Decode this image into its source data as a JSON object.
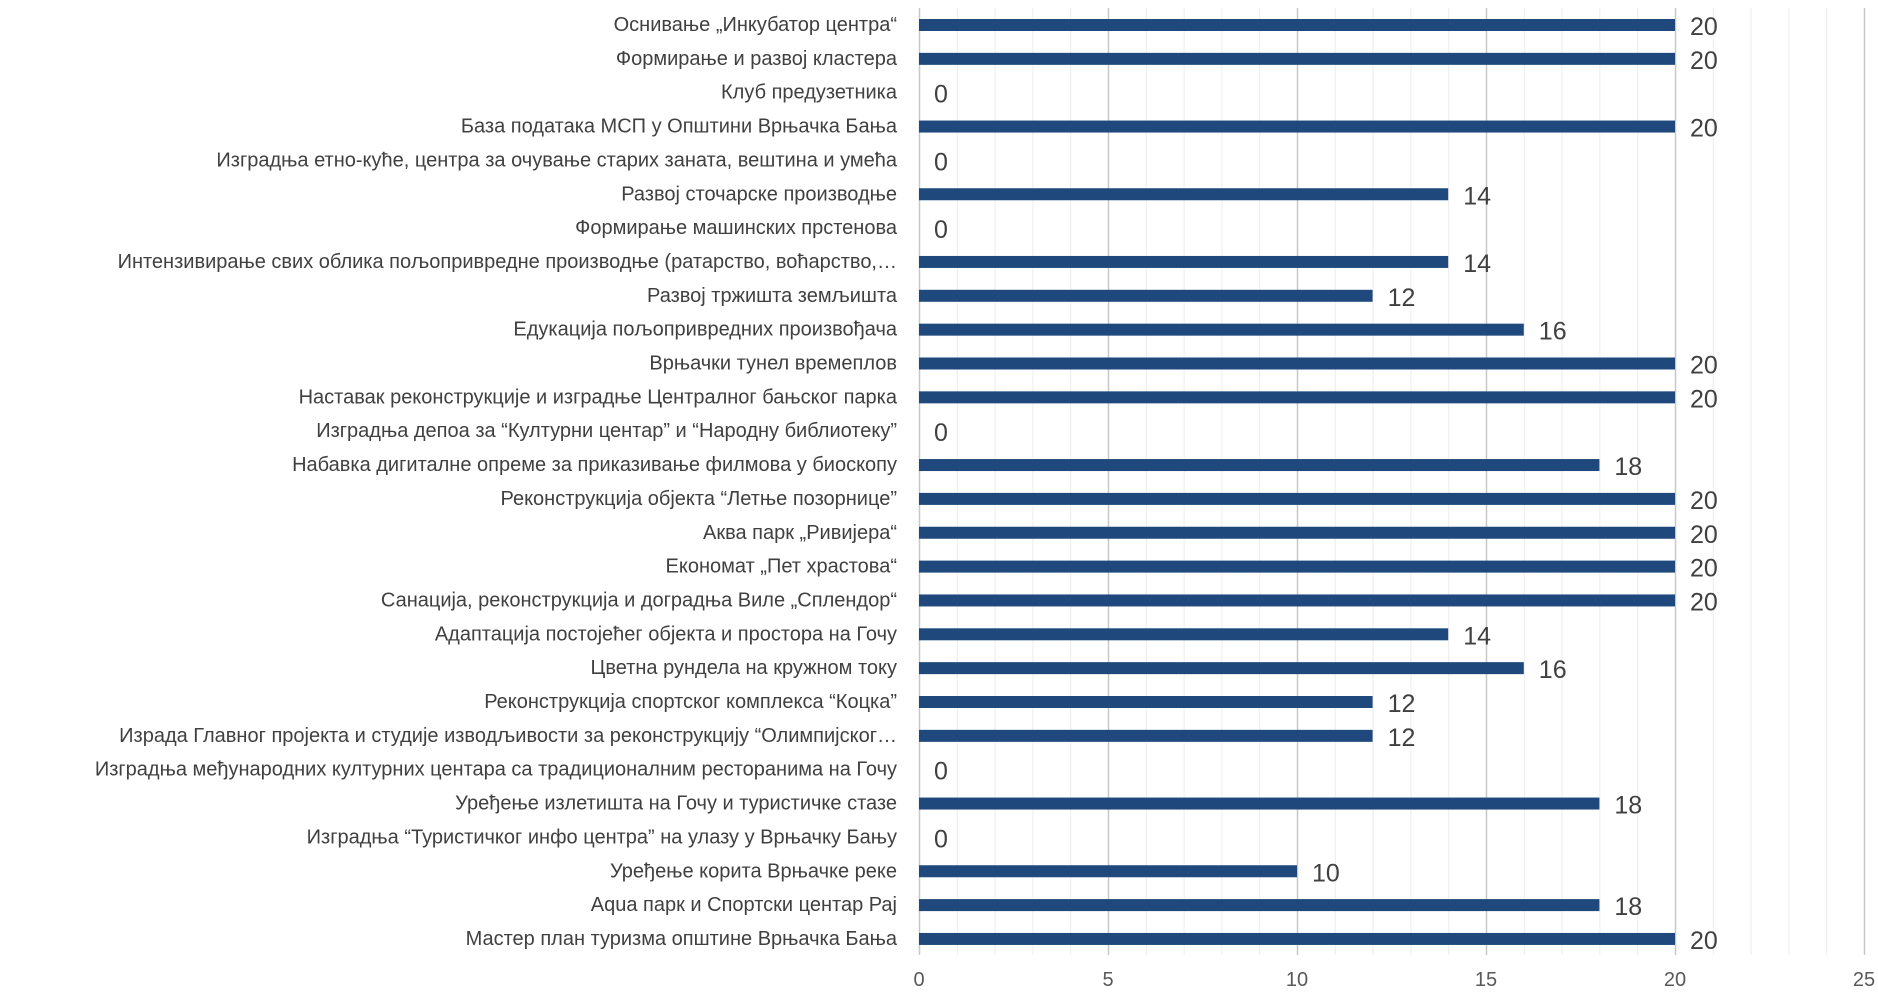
{
  "chart_data": {
    "type": "bar",
    "orientation": "horizontal",
    "title": "",
    "xlabel": "",
    "ylabel": "",
    "xlim": [
      0,
      25
    ],
    "x_ticks": [
      0,
      5,
      10,
      15,
      20,
      25
    ],
    "grid": true,
    "legend": "none",
    "bar_color": "#1F497D",
    "categories": [
      "Оснивање „Инкубатор центра“",
      "Формирање и развој кластера",
      "Клуб предузетника",
      "База података МСП у Општини Врњачка Бања",
      "Изградња етно-куће, центра за очување старих заната, вештина и умећа",
      "Развој сточарске производње",
      "Формирање машинских прстенова",
      "Интензивирање свих облика пољопривредне производње (ратарство, воћарство,…",
      "Развој тржишта земљишта",
      "Едукација пољопривредних произвођача",
      "Врњачки тунел времеплов",
      "Наставак реконструкције и изградње Централног бањског парка",
      "Изградња депоа за “Културни центар” и “Народну библиотеку”",
      "Набавка дигиталне опреме за приказивање филмова у биоскопу",
      "Реконструкција објекта “Летње позорнице”",
      "Аква парк „Ривијера“",
      "Економат „Пет храстова“",
      "Санација, реконструкција и доградња Виле „Сплендор“",
      "Адаптација постојећег објекта и простора на Гочу",
      "Цветна рундела на кружном току",
      "Реконструкција спортског комплекса “Коцка”",
      "Израда Главног пројекта и студије изводљивости за реконструкцију “Олимпијског…",
      "Изградња међународних културних центара са традиционалним ресторанима на Гочу",
      "Уређење излетишта на Гочу и туристичке стазе",
      "Изградња “Туристичког инфо центра” на улазу у Врњачку Бању",
      "Уређење корита Врњачке реке",
      "Aqua парк и Спортски центар Рај",
      "Мастер план туризма општине Врњачка Бања"
    ],
    "values": [
      20,
      20,
      0,
      20,
      0,
      14,
      0,
      14,
      12,
      16,
      20,
      20,
      0,
      18,
      20,
      20,
      20,
      20,
      14,
      16,
      12,
      12,
      0,
      18,
      0,
      10,
      18,
      20
    ]
  }
}
